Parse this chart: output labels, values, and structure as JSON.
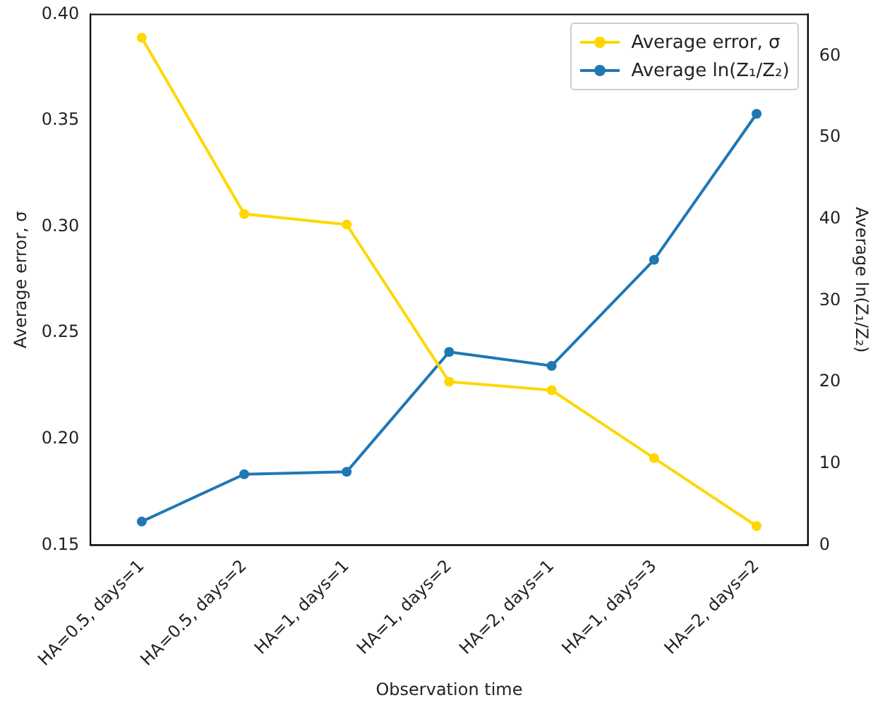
{
  "chart_data": {
    "type": "line",
    "xlabel": "Observation time",
    "ylabel": "Average error, σ",
    "y2label": "Average ln(Z₁/Z₂)",
    "categories": [
      "HA=0.5, days=1",
      "HA=0.5, days=2",
      "HA=1, days=1",
      "HA=1, days=2",
      "HA=2, days=1",
      "HA=1, days=3",
      "HA=2, days=2"
    ],
    "series": [
      {
        "name": "Average error, σ",
        "color": "#ffd700",
        "values": [
          0.389,
          0.306,
          0.301,
          0.227,
          0.223,
          0.191,
          0.159
        ]
      },
      {
        "name": "Average ln(Z₁/Z₂)",
        "color": "#1f77b4",
        "axis": "y2",
        "values": [
          2.9,
          8.7,
          9.0,
          23.7,
          22.0,
          35.0,
          52.9
        ]
      }
    ],
    "ylim": [
      0.15,
      0.4
    ],
    "yticks": [
      0.15,
      {
        "value": 0.2,
        "label": "0.20"
      },
      0.25,
      {
        "value": 0.3,
        "label": "0.30"
      },
      0.35,
      {
        "value": 0.4,
        "label": "0.40"
      }
    ],
    "y2lim": [
      0,
      65.1
    ],
    "y2ticks": [
      0,
      10,
      20,
      30,
      40,
      50,
      60
    ],
    "grid": false,
    "legend": "top right",
    "marker": "circle",
    "line_style": "solid"
  }
}
